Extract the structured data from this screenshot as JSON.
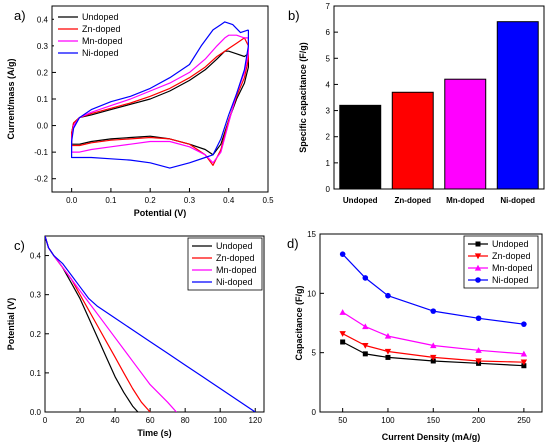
{
  "chart_data": [
    {
      "panel_label": "a)",
      "type": "line",
      "xlabel": "Potential (V)",
      "ylabel": "Current/mass (A/g)",
      "xlim": [
        -0.05,
        0.5
      ],
      "ylim": [
        -0.25,
        0.45
      ],
      "xticks": [
        "0.0",
        "0.1",
        "0.2",
        "0.3",
        "0.4",
        "0.5"
      ],
      "xtick_values": [
        0.0,
        0.1,
        0.2,
        0.3,
        0.4,
        0.5
      ],
      "yticks": [
        "-0.2",
        "-0.1",
        "0.0",
        "0.1",
        "0.2",
        "0.3",
        "0.4"
      ],
      "ytick_values": [
        -0.2,
        -0.1,
        0.0,
        0.1,
        0.2,
        0.3,
        0.4
      ],
      "legend_position": "top-left",
      "grid": false,
      "series": [
        {
          "name": "Undoped",
          "color": "#000000",
          "x": [
            0.45,
            0.45,
            0.44,
            0.42,
            0.4,
            0.38,
            0.36,
            0.34,
            0.3,
            0.25,
            0.2,
            0.15,
            0.1,
            0.05,
            0.02,
            0.0,
            0.0,
            0.005,
            0.02,
            0.05,
            0.1,
            0.15,
            0.2,
            0.25,
            0.3,
            0.34,
            0.37,
            0.39,
            0.4,
            0.42,
            0.44,
            0.45
          ],
          "y": [
            0.27,
            0.22,
            0.16,
            0.1,
            0.02,
            -0.07,
            -0.11,
            -0.09,
            -0.07,
            -0.05,
            -0.04,
            -0.045,
            -0.05,
            -0.06,
            -0.07,
            -0.07,
            -0.03,
            0.01,
            0.03,
            0.04,
            0.06,
            0.08,
            0.1,
            0.13,
            0.17,
            0.21,
            0.25,
            0.28,
            0.28,
            0.27,
            0.26,
            0.27
          ]
        },
        {
          "name": "Zn-doped",
          "color": "#ff0000",
          "x": [
            0.45,
            0.45,
            0.44,
            0.42,
            0.4,
            0.38,
            0.36,
            0.34,
            0.3,
            0.25,
            0.2,
            0.15,
            0.1,
            0.05,
            0.02,
            0.0,
            0.0,
            0.005,
            0.02,
            0.05,
            0.1,
            0.15,
            0.2,
            0.25,
            0.3,
            0.34,
            0.37,
            0.39,
            0.4,
            0.42,
            0.44,
            0.45
          ],
          "y": [
            0.3,
            0.25,
            0.18,
            0.11,
            0.02,
            -0.09,
            -0.15,
            -0.11,
            -0.07,
            -0.05,
            -0.045,
            -0.05,
            -0.055,
            -0.065,
            -0.075,
            -0.075,
            -0.03,
            0.01,
            0.03,
            0.045,
            0.065,
            0.085,
            0.11,
            0.14,
            0.18,
            0.22,
            0.26,
            0.28,
            0.29,
            0.31,
            0.33,
            0.3
          ]
        },
        {
          "name": "Mn-doped",
          "color": "#ff00ff",
          "x": [
            0.45,
            0.45,
            0.44,
            0.42,
            0.4,
            0.38,
            0.36,
            0.34,
            0.3,
            0.25,
            0.2,
            0.15,
            0.1,
            0.05,
            0.02,
            0.0,
            0.0,
            0.005,
            0.02,
            0.05,
            0.1,
            0.15,
            0.2,
            0.25,
            0.3,
            0.34,
            0.37,
            0.39,
            0.4,
            0.42,
            0.44,
            0.45
          ],
          "y": [
            0.33,
            0.27,
            0.2,
            0.12,
            0.01,
            -0.1,
            -0.14,
            -0.11,
            -0.08,
            -0.06,
            -0.06,
            -0.07,
            -0.08,
            -0.09,
            -0.1,
            -0.1,
            -0.05,
            0.0,
            0.03,
            0.05,
            0.075,
            0.1,
            0.13,
            0.16,
            0.2,
            0.25,
            0.3,
            0.33,
            0.34,
            0.34,
            0.33,
            0.33
          ]
        },
        {
          "name": "Ni-doped",
          "color": "#0000ff",
          "x": [
            0.45,
            0.45,
            0.44,
            0.42,
            0.4,
            0.38,
            0.36,
            0.34,
            0.3,
            0.25,
            0.2,
            0.15,
            0.1,
            0.05,
            0.02,
            0.0,
            0.0,
            0.005,
            0.02,
            0.05,
            0.1,
            0.15,
            0.2,
            0.25,
            0.3,
            0.33,
            0.36,
            0.38,
            0.39,
            0.41,
            0.43,
            0.45
          ],
          "y": [
            0.36,
            0.3,
            0.21,
            0.12,
            0.04,
            -0.05,
            -0.11,
            -0.12,
            -0.14,
            -0.16,
            -0.14,
            -0.13,
            -0.125,
            -0.12,
            -0.12,
            -0.12,
            -0.06,
            -0.01,
            0.03,
            0.06,
            0.09,
            0.11,
            0.14,
            0.18,
            0.23,
            0.3,
            0.36,
            0.38,
            0.39,
            0.38,
            0.35,
            0.36
          ]
        }
      ]
    },
    {
      "panel_label": "b)",
      "type": "bar",
      "xlabel": "",
      "ylabel": "Specific capacitance (F/g)",
      "ylim": [
        0,
        7
      ],
      "yticks": [
        "0",
        "1",
        "2",
        "3",
        "4",
        "5",
        "6",
        "7"
      ],
      "ytick_values": [
        0,
        1,
        2,
        3,
        4,
        5,
        6,
        7
      ],
      "grid": false,
      "categories": [
        "Undoped",
        "Zn-doped",
        "Mn-doped",
        "Ni-doped"
      ],
      "values": [
        3.2,
        3.7,
        4.2,
        6.4
      ],
      "colors": [
        "#000000",
        "#ff0000",
        "#ff00ff",
        "#0000ff"
      ]
    },
    {
      "panel_label": "c)",
      "type": "line",
      "xlabel": "Time (s)",
      "ylabel": "Potential (V)",
      "xlim": [
        0,
        125
      ],
      "ylim": [
        0,
        0.45
      ],
      "xticks": [
        "0",
        "20",
        "40",
        "60",
        "80",
        "100",
        "120"
      ],
      "xtick_values": [
        0,
        20,
        40,
        60,
        80,
        100,
        120
      ],
      "yticks": [
        "0.0",
        "0.1",
        "0.2",
        "0.3",
        "0.4"
      ],
      "ytick_values": [
        0.0,
        0.1,
        0.2,
        0.3,
        0.4
      ],
      "legend_position": "top-right",
      "grid": false,
      "series": [
        {
          "name": "Undoped",
          "color": "#000000",
          "x": [
            0,
            2,
            5,
            10,
            15,
            20,
            25,
            30,
            35,
            40,
            45,
            50,
            53
          ],
          "y": [
            0.45,
            0.42,
            0.4,
            0.37,
            0.33,
            0.29,
            0.24,
            0.19,
            0.14,
            0.09,
            0.05,
            0.015,
            0.0
          ]
        },
        {
          "name": "Zn-doped",
          "color": "#ff0000",
          "x": [
            0,
            2,
            5,
            10,
            15,
            20,
            25,
            30,
            35,
            40,
            45,
            50,
            55,
            60
          ],
          "y": [
            0.45,
            0.42,
            0.4,
            0.37,
            0.34,
            0.3,
            0.26,
            0.22,
            0.18,
            0.14,
            0.1,
            0.06,
            0.025,
            0.0
          ]
        },
        {
          "name": "Mn-doped",
          "color": "#ff00ff",
          "x": [
            0,
            2,
            5,
            10,
            15,
            20,
            25,
            30,
            40,
            50,
            60,
            70,
            75
          ],
          "y": [
            0.45,
            0.42,
            0.4,
            0.37,
            0.34,
            0.31,
            0.28,
            0.25,
            0.19,
            0.13,
            0.07,
            0.025,
            0.0
          ]
        },
        {
          "name": "Ni-doped",
          "color": "#0000ff",
          "x": [
            0,
            2,
            5,
            10,
            15,
            20,
            25,
            30,
            40,
            50,
            60,
            70,
            80,
            90,
            100,
            110,
            120
          ],
          "y": [
            0.45,
            0.42,
            0.4,
            0.38,
            0.35,
            0.32,
            0.29,
            0.27,
            0.24,
            0.21,
            0.18,
            0.15,
            0.12,
            0.09,
            0.06,
            0.03,
            0.0
          ]
        }
      ]
    },
    {
      "panel_label": "d)",
      "type": "line",
      "xlabel": "Current Density (mA/g)",
      "ylabel": "Capacitance (F/g)",
      "xlim": [
        25,
        270
      ],
      "ylim": [
        0,
        15
      ],
      "xticks": [
        "50",
        "100",
        "150",
        "200",
        "250"
      ],
      "xtick_values": [
        50,
        100,
        150,
        200,
        250
      ],
      "yticks": [
        "0",
        "5",
        "10",
        "15"
      ],
      "ytick_values": [
        0,
        5,
        10,
        15
      ],
      "legend_position": "top-right",
      "grid": false,
      "x": [
        50,
        75,
        100,
        150,
        200,
        250
      ],
      "series": [
        {
          "name": "Undoped",
          "color": "#000000",
          "marker": "square",
          "values": [
            5.9,
            4.9,
            4.6,
            4.3,
            4.1,
            3.9
          ]
        },
        {
          "name": "Zn-doped",
          "color": "#ff0000",
          "marker": "triangle-down",
          "values": [
            6.6,
            5.6,
            5.1,
            4.6,
            4.3,
            4.2
          ]
        },
        {
          "name": "Mn-doped",
          "color": "#ff00ff",
          "marker": "triangle-up",
          "values": [
            8.4,
            7.2,
            6.4,
            5.6,
            5.2,
            4.9
          ]
        },
        {
          "name": "Ni-doped",
          "color": "#0000ff",
          "marker": "circle",
          "values": [
            13.3,
            11.3,
            9.8,
            8.5,
            7.9,
            7.4
          ]
        }
      ]
    }
  ]
}
